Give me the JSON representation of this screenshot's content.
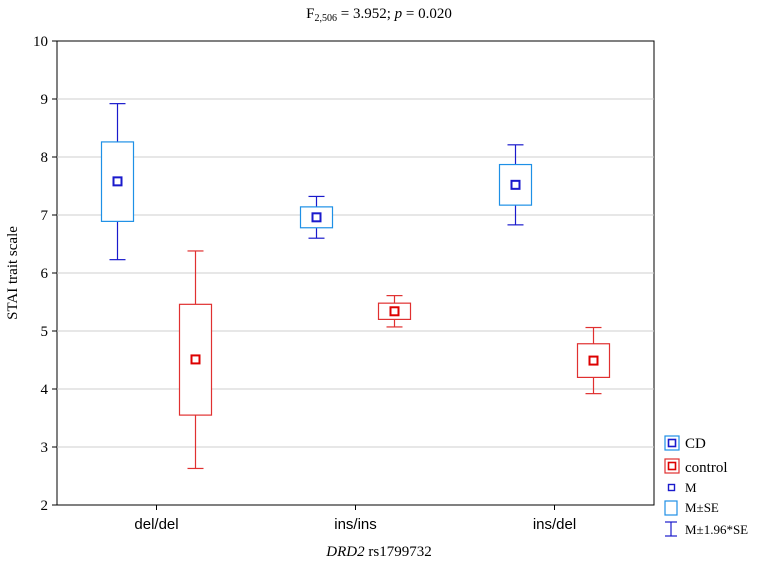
{
  "chart_data": {
    "type": "box",
    "title_main": "F",
    "title_sub": "2,506",
    "title_mid": " = 3.952; ",
    "title_p": "p",
    "title_end": " = 0.020",
    "ylabel": "STAI trait scale",
    "xlabel_gene": "DRD2",
    "xlabel_snp": " rs1799732",
    "ylim": [
      2,
      10
    ],
    "yticks": [
      2,
      3,
      4,
      5,
      6,
      7,
      8,
      9,
      10
    ],
    "categories": [
      "del/del",
      "ins/ins",
      "ins/del"
    ],
    "grid": true,
    "series": [
      {
        "name": "CD",
        "color": "#1e90e6",
        "mean_color": "#1a1acc",
        "whisker_color": "#1a1acc",
        "mean": [
          7.58,
          6.96,
          7.52
        ],
        "se_low": [
          6.89,
          6.78,
          7.17
        ],
        "se_high": [
          8.26,
          7.14,
          7.87
        ],
        "ci_low": [
          6.23,
          6.6,
          6.83
        ],
        "ci_high": [
          8.92,
          7.32,
          8.21
        ]
      },
      {
        "name": "control",
        "color": "#e03030",
        "mean_color": "#dd0000",
        "whisker_color": "#e03030",
        "mean": [
          4.51,
          5.34,
          4.49
        ],
        "se_low": [
          3.55,
          5.2,
          4.2
        ],
        "se_high": [
          5.46,
          5.48,
          4.78
        ],
        "ci_low": [
          2.63,
          5.07,
          3.92
        ],
        "ci_high": [
          6.38,
          5.61,
          5.06
        ]
      }
    ],
    "legend": {
      "position": "right",
      "items": [
        "CD",
        "control",
        "M",
        "M±SE",
        "M±1.96*SE"
      ]
    }
  }
}
